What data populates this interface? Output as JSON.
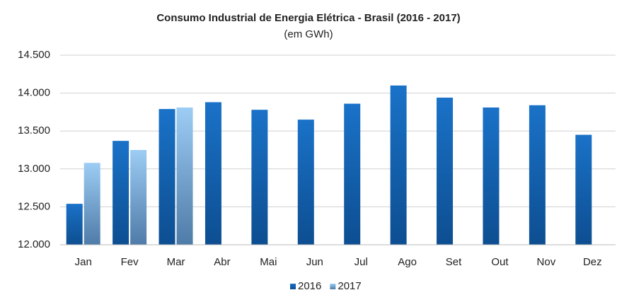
{
  "chart_data": {
    "type": "bar",
    "title": "Consumo Industrial de Energia Elétrica - Brasil (2016 - 2017)",
    "subtitle": "(em GWh)",
    "categories": [
      "Jan",
      "Fev",
      "Mar",
      "Abr",
      "Mai",
      "Jun",
      "Jul",
      "Ago",
      "Set",
      "Out",
      "Nov",
      "Dez"
    ],
    "series": [
      {
        "name": "2016",
        "color": "#1a72c8",
        "values": [
          12540,
          13370,
          13790,
          13880,
          13780,
          13650,
          13860,
          14100,
          13940,
          13810,
          13840,
          13450
        ]
      },
      {
        "name": "2017",
        "color": "#9dcdf5",
        "values": [
          13080,
          13250,
          13810,
          null,
          null,
          null,
          null,
          null,
          null,
          null,
          null,
          null
        ]
      }
    ],
    "ylim": [
      12000,
      14500
    ],
    "yticks": [
      {
        "value": 12000,
        "label": "12.000"
      },
      {
        "value": 12500,
        "label": "12.500"
      },
      {
        "value": 13000,
        "label": "13.000"
      },
      {
        "value": 13500,
        "label": "13.500"
      },
      {
        "value": 14000,
        "label": "14.000"
      },
      {
        "value": 14500,
        "label": "14.500"
      }
    ],
    "grid": true,
    "legend": "bottom"
  }
}
